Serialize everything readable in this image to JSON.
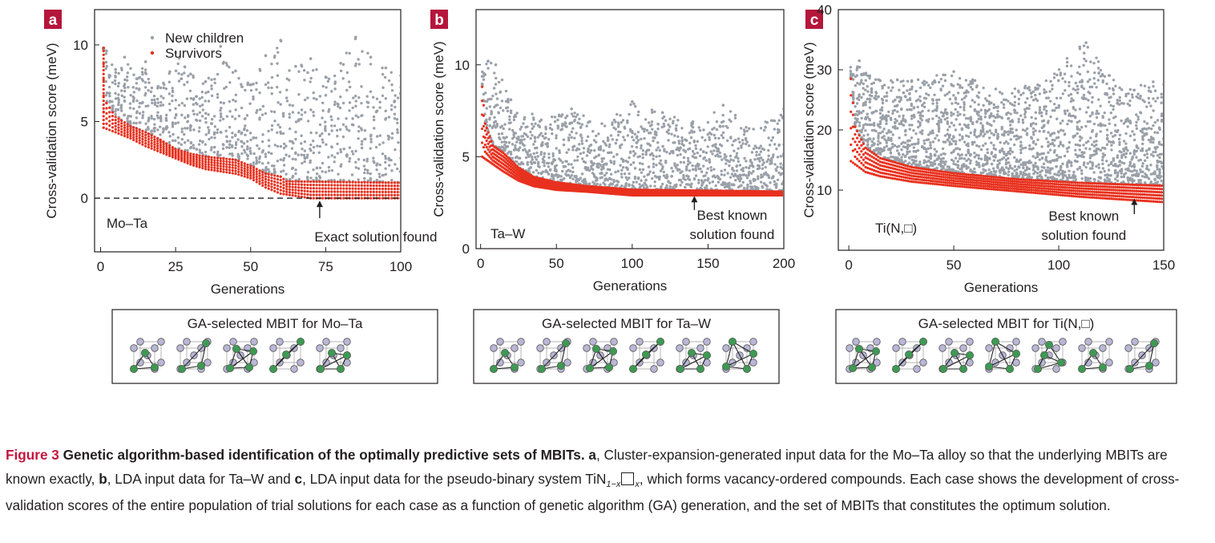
{
  "colors": {
    "children": "#9aa0a8",
    "survivors": "#e8311e",
    "label_box": "#b5163b",
    "caption_accent": "#c4163c",
    "atom_lavender": "#b9b7d6",
    "atom_green": "#3d9a52",
    "text": "#231f20"
  },
  "chart_data": [
    {
      "panel": "a",
      "type": "scatter",
      "system": "Mo–Ta",
      "xlabel": "Generations",
      "ylabel": "Cross-validation score (meV)",
      "xlim": [
        -2,
        100
      ],
      "ylim": [
        -3.5,
        12.3
      ],
      "xticks": [
        0,
        25,
        50,
        75,
        100
      ],
      "yticks": [
        0,
        5,
        10
      ],
      "reference_line_y": 0,
      "legend": {
        "position": "top-center",
        "entries": [
          "New children",
          "Survivors"
        ]
      },
      "annotation": {
        "text": "Exact solution found",
        "arrow_x": 73,
        "arrow_from_y": -1.3,
        "arrow_to_y": 0
      },
      "series": [
        {
          "name": "New children",
          "color": "#9aa0a8",
          "approx_x_range": [
            1,
            100
          ],
          "approx_y_range": [
            0.5,
            10.5
          ],
          "points": [
            [
              2,
              9.6
            ],
            [
              5,
              8.4
            ],
            [
              8,
              9.2
            ],
            [
              12,
              7.8
            ],
            [
              15,
              8.9
            ],
            [
              20,
              7.2
            ],
            [
              25,
              9.5
            ],
            [
              30,
              8.1
            ],
            [
              35,
              7.6
            ],
            [
              40,
              9.9
            ],
            [
              45,
              8.3
            ],
            [
              50,
              7.4
            ],
            [
              55,
              9.3
            ],
            [
              60,
              10.3
            ],
            [
              65,
              8.6
            ],
            [
              70,
              9.1
            ],
            [
              75,
              7.9
            ],
            [
              80,
              8.8
            ],
            [
              85,
              10.5
            ],
            [
              90,
              9.2
            ],
            [
              95,
              8.5
            ],
            [
              100,
              8.0
            ]
          ]
        },
        {
          "name": "Survivors",
          "color": "#e8311e",
          "approx_x_range": [
            1,
            100
          ],
          "approx_y_range": [
            0,
            9.8
          ],
          "band_upper": [
            [
              1,
              9.8
            ],
            [
              2,
              6.2
            ],
            [
              5,
              5.3
            ],
            [
              10,
              4.7
            ],
            [
              15,
              4.3
            ],
            [
              20,
              3.8
            ],
            [
              25,
              3.2
            ],
            [
              30,
              2.9
            ],
            [
              35,
              2.7
            ],
            [
              45,
              2.5
            ],
            [
              50,
              2.1
            ],
            [
              55,
              1.6
            ],
            [
              60,
              1.4
            ],
            [
              62,
              1.1
            ],
            [
              100,
              1.0
            ]
          ],
          "band_lower": [
            [
              1,
              4.6
            ],
            [
              5,
              4.3
            ],
            [
              10,
              3.9
            ],
            [
              15,
              3.4
            ],
            [
              20,
              3.0
            ],
            [
              25,
              2.6
            ],
            [
              30,
              2.2
            ],
            [
              35,
              1.9
            ],
            [
              45,
              1.6
            ],
            [
              50,
              1.3
            ],
            [
              55,
              0.7
            ],
            [
              60,
              0.3
            ],
            [
              70,
              0.0
            ],
            [
              100,
              0.0
            ]
          ]
        }
      ]
    },
    {
      "panel": "b",
      "type": "scatter",
      "system": "Ta–W",
      "xlabel": "Generations",
      "ylabel": "Cross-validation score (meV)",
      "xlim": [
        -3,
        200
      ],
      "ylim": [
        0,
        13.0
      ],
      "xticks": [
        0,
        50,
        100,
        150,
        200
      ],
      "yticks": [
        0,
        5,
        10
      ],
      "annotation": {
        "text_lines": [
          "Best known",
          "solution found"
        ],
        "arrow_x": 141,
        "arrow_from_y": 2.1,
        "arrow_to_y": 3.0
      },
      "series": [
        {
          "name": "New children",
          "color": "#9aa0a8",
          "approx_x_range": [
            1,
            200
          ],
          "approx_y_range": [
            3.0,
            10.2
          ],
          "points": [
            [
              5,
              10.2
            ],
            [
              10,
              10.0
            ],
            [
              20,
              8.1
            ],
            [
              40,
              7.0
            ],
            [
              60,
              7.6
            ],
            [
              80,
              6.8
            ],
            [
              100,
              8.0
            ],
            [
              120,
              7.4
            ],
            [
              140,
              6.9
            ],
            [
              160,
              7.8
            ],
            [
              180,
              6.5
            ],
            [
              200,
              7.6
            ]
          ]
        },
        {
          "name": "Survivors",
          "color": "#e8311e",
          "approx_x_range": [
            1,
            200
          ],
          "approx_y_range": [
            2.9,
            8.8
          ],
          "band_upper": [
            [
              1,
              8.8
            ],
            [
              3,
              6.8
            ],
            [
              8,
              5.6
            ],
            [
              15,
              5.2
            ],
            [
              25,
              4.4
            ],
            [
              35,
              3.9
            ],
            [
              50,
              3.6
            ],
            [
              70,
              3.4
            ],
            [
              100,
              3.2
            ],
            [
              200,
              3.1
            ]
          ],
          "band_lower": [
            [
              1,
              5.0
            ],
            [
              8,
              4.6
            ],
            [
              15,
              4.2
            ],
            [
              25,
              3.7
            ],
            [
              35,
              3.4
            ],
            [
              50,
              3.2
            ],
            [
              70,
              3.1
            ],
            [
              100,
              2.9
            ],
            [
              200,
              2.9
            ]
          ]
        }
      ]
    },
    {
      "panel": "c",
      "type": "scatter",
      "system": "Ti(N,□)",
      "xlabel": "Generations",
      "ylabel": "Cross-validation score (meV)",
      "xlim": [
        -5,
        150
      ],
      "ylim": [
        0,
        40
      ],
      "xticks": [
        0,
        50,
        100,
        150
      ],
      "yticks": [
        10,
        20,
        30,
        40
      ],
      "annotation": {
        "text_lines": [
          "Best known",
          "solution found"
        ],
        "arrow_x": 136,
        "arrow_from_y": 6.0,
        "arrow_to_y": 9.0
      },
      "series": [
        {
          "name": "New children",
          "color": "#9aa0a8",
          "approx_x_range": [
            1,
            150
          ],
          "approx_y_range": [
            9.0,
            34.5
          ],
          "points": [
            [
              5,
              31.5
            ],
            [
              10,
              29.0
            ],
            [
              30,
              28.2
            ],
            [
              50,
              29.7
            ],
            [
              70,
              26.8
            ],
            [
              90,
              27.5
            ],
            [
              110,
              33.8
            ],
            [
              113,
              34.5
            ],
            [
              130,
              26.7
            ],
            [
              145,
              28.0
            ]
          ]
        },
        {
          "name": "Survivors",
          "color": "#e8311e",
          "approx_x_range": [
            1,
            150
          ],
          "approx_y_range": [
            8.0,
            28.5
          ],
          "band_upper": [
            [
              1,
              28.5
            ],
            [
              3,
              20.5
            ],
            [
              8,
              17.0
            ],
            [
              15,
              15.3
            ],
            [
              30,
              13.8
            ],
            [
              50,
              12.8
            ],
            [
              80,
              11.8
            ],
            [
              110,
              11.2
            ],
            [
              150,
              10.7
            ]
          ],
          "band_lower": [
            [
              1,
              14.8
            ],
            [
              8,
              13.0
            ],
            [
              15,
              12.3
            ],
            [
              30,
              11.4
            ],
            [
              50,
              10.7
            ],
            [
              80,
              9.8
            ],
            [
              110,
              8.9
            ],
            [
              150,
              8.0
            ]
          ]
        }
      ]
    }
  ],
  "panels": {
    "a": {
      "label": "a",
      "system_label": "Mo–Ta",
      "xlabel": "Generations",
      "ylabel": "Cross-validation score (meV)",
      "xticks": [
        "0",
        "25",
        "50",
        "75",
        "100"
      ],
      "yticks": [
        "0",
        "5",
        "10"
      ],
      "legend_children": "New children",
      "legend_survivors": "Survivors",
      "annotation_line1": "Exact solution found",
      "mbit_title": "GA-selected MBIT for Mo–Ta",
      "mbit_count": 5
    },
    "b": {
      "label": "b",
      "system_label": "Ta–W",
      "xlabel": "Generations",
      "ylabel": "Cross-validation score (meV)",
      "xticks": [
        "0",
        "50",
        "100",
        "150",
        "200"
      ],
      "yticks": [
        "0",
        "5",
        "10"
      ],
      "annotation_line1": "Best known",
      "annotation_line2": "solution found",
      "mbit_title": "GA-selected MBIT for Ta–W",
      "mbit_count": 6
    },
    "c": {
      "label": "c",
      "system_label": "Ti(N,□)",
      "xlabel": "Generations",
      "ylabel": "Cross-validation score (meV)",
      "xticks": [
        "0",
        "50",
        "100",
        "150"
      ],
      "yticks": [
        "10",
        "20",
        "30",
        "40"
      ],
      "annotation_line1": "Best known",
      "annotation_line2": "solution found",
      "mbit_title": "GA-selected MBIT for Ti(N,□)",
      "mbit_count": 7
    }
  },
  "caption": {
    "figure_label": "Figure 3",
    "title": "Genetic algorithm-based identification of the optimally predictive sets of MBITs.",
    "a_label": "a",
    "text_a": ", Cluster-expansion-generated input data for the Mo–Ta alloy so that the underlying MBITs are known exactly, ",
    "b_label": "b",
    "text_b": ", LDA input data for Ta–W and ",
    "c_label": "c",
    "text_c": ", LDA input data for the pseudo-binary system TiN",
    "sub_1mx": "1−x",
    "sub_x": "x",
    "text_end": ", which forms vacancy-ordered compounds. Each case shows the development of cross-validation scores of the entire population of trial solutions for each case as a function of genetic algorithm (GA) generation, and the set of MBITs that constitutes the optimum solution."
  }
}
